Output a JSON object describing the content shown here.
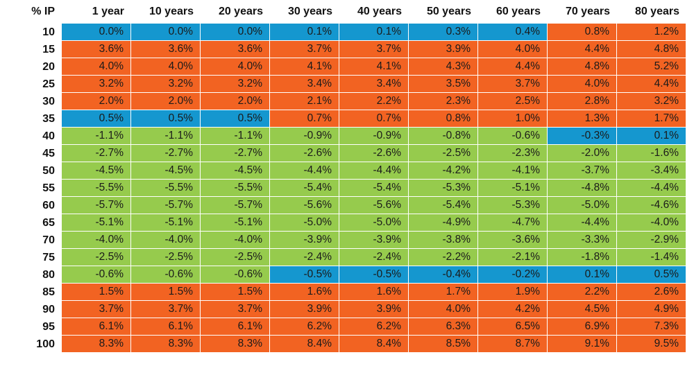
{
  "colors": {
    "neg": "#96cb4d",
    "low": "#1597cf",
    "high": "#f26322"
  },
  "chart_data": {
    "type": "heatmap",
    "row_header": "% IP",
    "columns": [
      "1 year",
      "10 years",
      "20 years",
      "30 years",
      "40 years",
      "50 years",
      "60 years",
      "70 years",
      "80 years"
    ],
    "rows": [
      "10",
      "15",
      "20",
      "25",
      "30",
      "35",
      "40",
      "45",
      "50",
      "55",
      "60",
      "65",
      "70",
      "75",
      "80",
      "85",
      "90",
      "95",
      "100"
    ],
    "values": [
      [
        0.0,
        0.0,
        0.0,
        0.1,
        0.1,
        0.3,
        0.4,
        0.8,
        1.2
      ],
      [
        3.6,
        3.6,
        3.6,
        3.7,
        3.7,
        3.9,
        4.0,
        4.4,
        4.8
      ],
      [
        4.0,
        4.0,
        4.0,
        4.1,
        4.1,
        4.3,
        4.4,
        4.8,
        5.2
      ],
      [
        3.2,
        3.2,
        3.2,
        3.4,
        3.4,
        3.5,
        3.7,
        4.0,
        4.4
      ],
      [
        2.0,
        2.0,
        2.0,
        2.1,
        2.2,
        2.3,
        2.5,
        2.8,
        3.2
      ],
      [
        0.5,
        0.5,
        0.5,
        0.7,
        0.7,
        0.8,
        1.0,
        1.3,
        1.7
      ],
      [
        -1.1,
        -1.1,
        -1.1,
        -0.9,
        -0.9,
        -0.8,
        -0.6,
        -0.3,
        0.1
      ],
      [
        -2.7,
        -2.7,
        -2.7,
        -2.6,
        -2.6,
        -2.5,
        -2.3,
        -2.0,
        -1.6
      ],
      [
        -4.5,
        -4.5,
        -4.5,
        -4.4,
        -4.4,
        -4.2,
        -4.1,
        -3.7,
        -3.4
      ],
      [
        -5.5,
        -5.5,
        -5.5,
        -5.4,
        -5.4,
        -5.3,
        -5.1,
        -4.8,
        -4.4
      ],
      [
        -5.7,
        -5.7,
        -5.7,
        -5.6,
        -5.6,
        -5.4,
        -5.3,
        -5.0,
        -4.6
      ],
      [
        -5.1,
        -5.1,
        -5.1,
        -5.0,
        -5.0,
        -4.9,
        -4.7,
        -4.4,
        -4.0
      ],
      [
        -4.0,
        -4.0,
        -4.0,
        -3.9,
        -3.9,
        -3.8,
        -3.6,
        -3.3,
        -2.9
      ],
      [
        -2.5,
        -2.5,
        -2.5,
        -2.4,
        -2.4,
        -2.2,
        -2.1,
        -1.8,
        -1.4
      ],
      [
        -0.6,
        -0.6,
        -0.6,
        -0.5,
        -0.5,
        -0.4,
        -0.2,
        0.1,
        0.5
      ],
      [
        1.5,
        1.5,
        1.5,
        1.6,
        1.6,
        1.7,
        1.9,
        2.2,
        2.6
      ],
      [
        3.7,
        3.7,
        3.7,
        3.9,
        3.9,
        4.0,
        4.2,
        4.5,
        4.9
      ],
      [
        6.1,
        6.1,
        6.1,
        6.2,
        6.2,
        6.3,
        6.5,
        6.9,
        7.3
      ],
      [
        8.3,
        8.3,
        8.3,
        8.4,
        8.4,
        8.5,
        8.7,
        9.1,
        9.5
      ]
    ],
    "cell_colors": [
      [
        "low",
        "low",
        "low",
        "low",
        "low",
        "low",
        "low",
        "high",
        "high"
      ],
      [
        "high",
        "high",
        "high",
        "high",
        "high",
        "high",
        "high",
        "high",
        "high"
      ],
      [
        "high",
        "high",
        "high",
        "high",
        "high",
        "high",
        "high",
        "high",
        "high"
      ],
      [
        "high",
        "high",
        "high",
        "high",
        "high",
        "high",
        "high",
        "high",
        "high"
      ],
      [
        "high",
        "high",
        "high",
        "high",
        "high",
        "high",
        "high",
        "high",
        "high"
      ],
      [
        "low",
        "low",
        "low",
        "high",
        "high",
        "high",
        "high",
        "high",
        "high"
      ],
      [
        "neg",
        "neg",
        "neg",
        "neg",
        "neg",
        "neg",
        "neg",
        "low",
        "low"
      ],
      [
        "neg",
        "neg",
        "neg",
        "neg",
        "neg",
        "neg",
        "neg",
        "neg",
        "neg"
      ],
      [
        "neg",
        "neg",
        "neg",
        "neg",
        "neg",
        "neg",
        "neg",
        "neg",
        "neg"
      ],
      [
        "neg",
        "neg",
        "neg",
        "neg",
        "neg",
        "neg",
        "neg",
        "neg",
        "neg"
      ],
      [
        "neg",
        "neg",
        "neg",
        "neg",
        "neg",
        "neg",
        "neg",
        "neg",
        "neg"
      ],
      [
        "neg",
        "neg",
        "neg",
        "neg",
        "neg",
        "neg",
        "neg",
        "neg",
        "neg"
      ],
      [
        "neg",
        "neg",
        "neg",
        "neg",
        "neg",
        "neg",
        "neg",
        "neg",
        "neg"
      ],
      [
        "neg",
        "neg",
        "neg",
        "neg",
        "neg",
        "neg",
        "neg",
        "neg",
        "neg"
      ],
      [
        "neg",
        "neg",
        "neg",
        "low",
        "low",
        "low",
        "low",
        "low",
        "low"
      ],
      [
        "high",
        "high",
        "high",
        "high",
        "high",
        "high",
        "high",
        "high",
        "high"
      ],
      [
        "high",
        "high",
        "high",
        "high",
        "high",
        "high",
        "high",
        "high",
        "high"
      ],
      [
        "high",
        "high",
        "high",
        "high",
        "high",
        "high",
        "high",
        "high",
        "high"
      ],
      [
        "high",
        "high",
        "high",
        "high",
        "high",
        "high",
        "high",
        "high",
        "high"
      ]
    ],
    "value_format": "percent, one decimal"
  }
}
